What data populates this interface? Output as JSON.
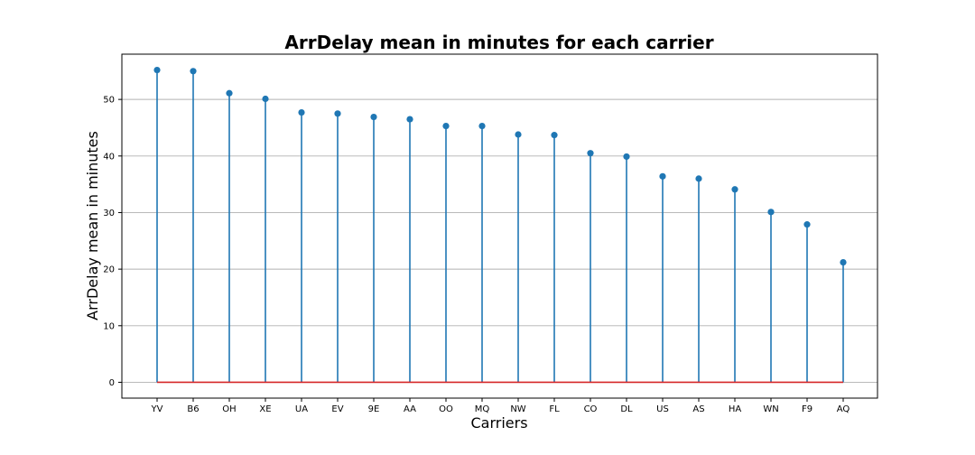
{
  "chart_data": {
    "type": "stem",
    "title": "ArrDelay mean in minutes for each carrier",
    "xlabel": "Carriers",
    "ylabel": "ArrDelay mean in minutes",
    "categories": [
      "YV",
      "B6",
      "OH",
      "XE",
      "UA",
      "EV",
      "9E",
      "AA",
      "OO",
      "MQ",
      "NW",
      "FL",
      "CO",
      "DL",
      "US",
      "AS",
      "HA",
      "WN",
      "F9",
      "AQ"
    ],
    "values": [
      55.2,
      55.0,
      51.1,
      50.1,
      47.7,
      47.5,
      46.9,
      46.5,
      45.3,
      45.3,
      43.8,
      43.7,
      40.5,
      39.9,
      36.4,
      36.0,
      34.1,
      30.1,
      27.9,
      21.2
    ],
    "ylim": [
      -2.8,
      58.0
    ],
    "yticks": [
      0,
      10,
      20,
      30,
      40,
      50
    ],
    "grid": "horizontal",
    "colors": {
      "stem": "#1f77b4",
      "baseline": "#d62728",
      "grid": "#b0b0b0"
    }
  }
}
